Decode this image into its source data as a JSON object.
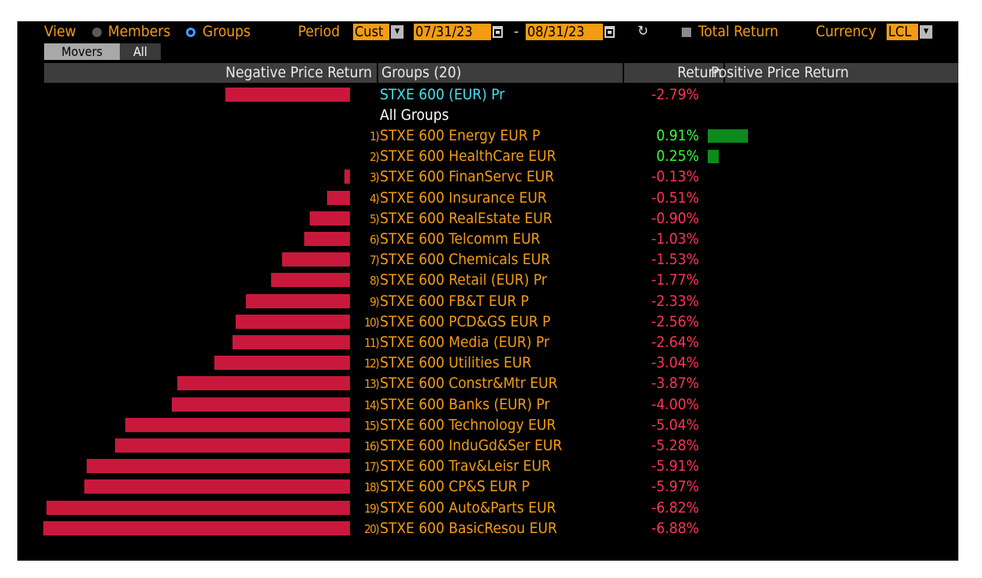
{
  "toolbar": {
    "view_label": "View",
    "members_label": "Members",
    "groups_label": "Groups",
    "period_label": "Period",
    "period_value": "Cust",
    "start_date": "07/31/23",
    "date_separator": "-",
    "end_date": "08/31/23",
    "total_return_label": "Total Return",
    "currency_label": "Currency",
    "currency_value": "LCL"
  },
  "tabs": [
    {
      "label": "Movers",
      "active": true
    },
    {
      "label": "All",
      "active": false
    }
  ],
  "header": {
    "negative": "Negative Price Return",
    "groups": "Groups (20)",
    "return": "Return",
    "positive": "Positive Price Return"
  },
  "benchmark": {
    "name": "STXE 600 (EUR) Pr",
    "return": "-2.79%",
    "value": -2.79
  },
  "all_groups_label": "All Groups",
  "colors": {
    "negative": "#c8193c",
    "positive": "#0e8a1c",
    "neg_text": "#ff3355",
    "pos_text": "#33ff33",
    "accent": "#f39c12",
    "benchmark": "#40e0f0"
  },
  "groups": [
    {
      "index": "1)",
      "name": "STXE 600 Energy EUR P",
      "return": "0.91%",
      "value": 0.91
    },
    {
      "index": "2)",
      "name": "STXE 600 HealthCare EUR",
      "return": "0.25%",
      "value": 0.25
    },
    {
      "index": "3)",
      "name": "STXE 600 FinanServc EUR",
      "return": "-0.13%",
      "value": -0.13
    },
    {
      "index": "4)",
      "name": "STXE 600 Insurance EUR",
      "return": "-0.51%",
      "value": -0.51
    },
    {
      "index": "5)",
      "name": "STXE 600 RealEstate EUR",
      "return": "-0.90%",
      "value": -0.9
    },
    {
      "index": "6)",
      "name": "STXE 600 Telcomm EUR",
      "return": "-1.03%",
      "value": -1.03
    },
    {
      "index": "7)",
      "name": "STXE 600 Chemicals EUR",
      "return": "-1.53%",
      "value": -1.53
    },
    {
      "index": "8)",
      "name": "STXE 600 Retail (EUR) Pr",
      "return": "-1.77%",
      "value": -1.77
    },
    {
      "index": "9)",
      "name": "STXE 600 FB&T EUR P",
      "return": "-2.33%",
      "value": -2.33
    },
    {
      "index": "10)",
      "name": "STXE 600 PCD&GS EUR P",
      "return": "-2.56%",
      "value": -2.56
    },
    {
      "index": "11)",
      "name": "STXE 600 Media (EUR) Pr",
      "return": "-2.64%",
      "value": -2.64
    },
    {
      "index": "12)",
      "name": "STXE 600 Utilities EUR",
      "return": "-3.04%",
      "value": -3.04
    },
    {
      "index": "13)",
      "name": "STXE 600 Constr&Mtr EUR",
      "return": "-3.87%",
      "value": -3.87
    },
    {
      "index": "14)",
      "name": "STXE 600 Banks (EUR) Pr",
      "return": "-4.00%",
      "value": -4.0
    },
    {
      "index": "15)",
      "name": "STXE 600 Technology EUR",
      "return": "-5.04%",
      "value": -5.04
    },
    {
      "index": "16)",
      "name": "STXE 600 InduGd&Ser EUR",
      "return": "-5.28%",
      "value": -5.28
    },
    {
      "index": "17)",
      "name": "STXE 600 Trav&Leisr EUR",
      "return": "-5.91%",
      "value": -5.91
    },
    {
      "index": "18)",
      "name": "STXE 600 CP&S EUR P",
      "return": "-5.97%",
      "value": -5.97
    },
    {
      "index": "19)",
      "name": "STXE 600 Auto&Parts EUR",
      "return": "-6.82%",
      "value": -6.82
    },
    {
      "index": "20)",
      "name": "STXE 600 BasicResou EUR",
      "return": "-6.88%",
      "value": -6.88
    }
  ]
}
